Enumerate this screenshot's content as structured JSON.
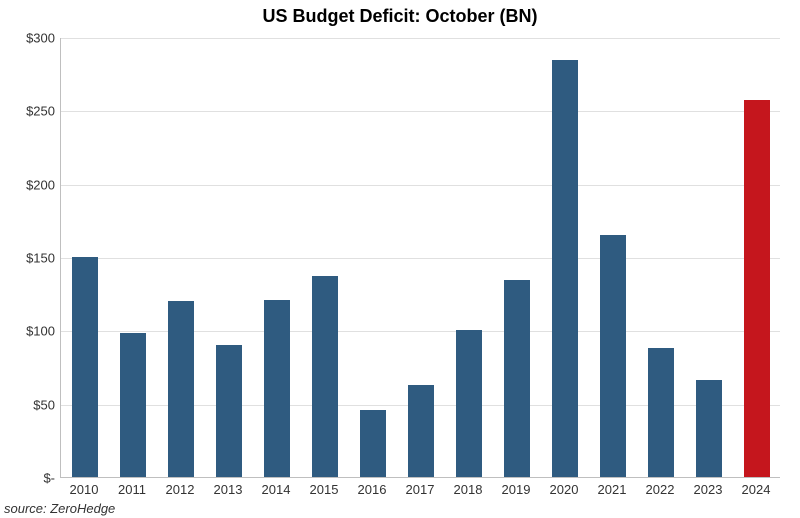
{
  "chart": {
    "type": "bar",
    "title": "US Budget Deficit: October  (BN)",
    "title_fontsize": 18,
    "title_fontweight": "bold",
    "source": "source: ZeroHedge",
    "source_fontsize": 13,
    "label_fontsize": 13,
    "background_color": "#ffffff",
    "grid_color": "#e0e0e0",
    "axis_color": "#bfbfbf",
    "bar_width": 0.55,
    "ylim": [
      0,
      300
    ],
    "ytick_step": 50,
    "yticks": [
      {
        "value": 0,
        "label": "$-"
      },
      {
        "value": 50,
        "label": "$50"
      },
      {
        "value": 100,
        "label": "$100"
      },
      {
        "value": 150,
        "label": "$150"
      },
      {
        "value": 200,
        "label": "$200"
      },
      {
        "value": 250,
        "label": "$250"
      },
      {
        "value": 300,
        "label": "$300"
      }
    ],
    "categories": [
      "2010",
      "2011",
      "2012",
      "2013",
      "2014",
      "2015",
      "2016",
      "2017",
      "2018",
      "2019",
      "2020",
      "2021",
      "2022",
      "2023",
      "2024"
    ],
    "values": [
      150,
      98,
      120,
      90,
      121,
      137,
      46,
      63,
      100,
      134,
      284,
      165,
      88,
      66,
      257
    ],
    "bar_colors": [
      "#2f5b80",
      "#2f5b80",
      "#2f5b80",
      "#2f5b80",
      "#2f5b80",
      "#2f5b80",
      "#2f5b80",
      "#2f5b80",
      "#2f5b80",
      "#2f5b80",
      "#2f5b80",
      "#2f5b80",
      "#2f5b80",
      "#2f5b80",
      "#c5161d"
    ]
  }
}
